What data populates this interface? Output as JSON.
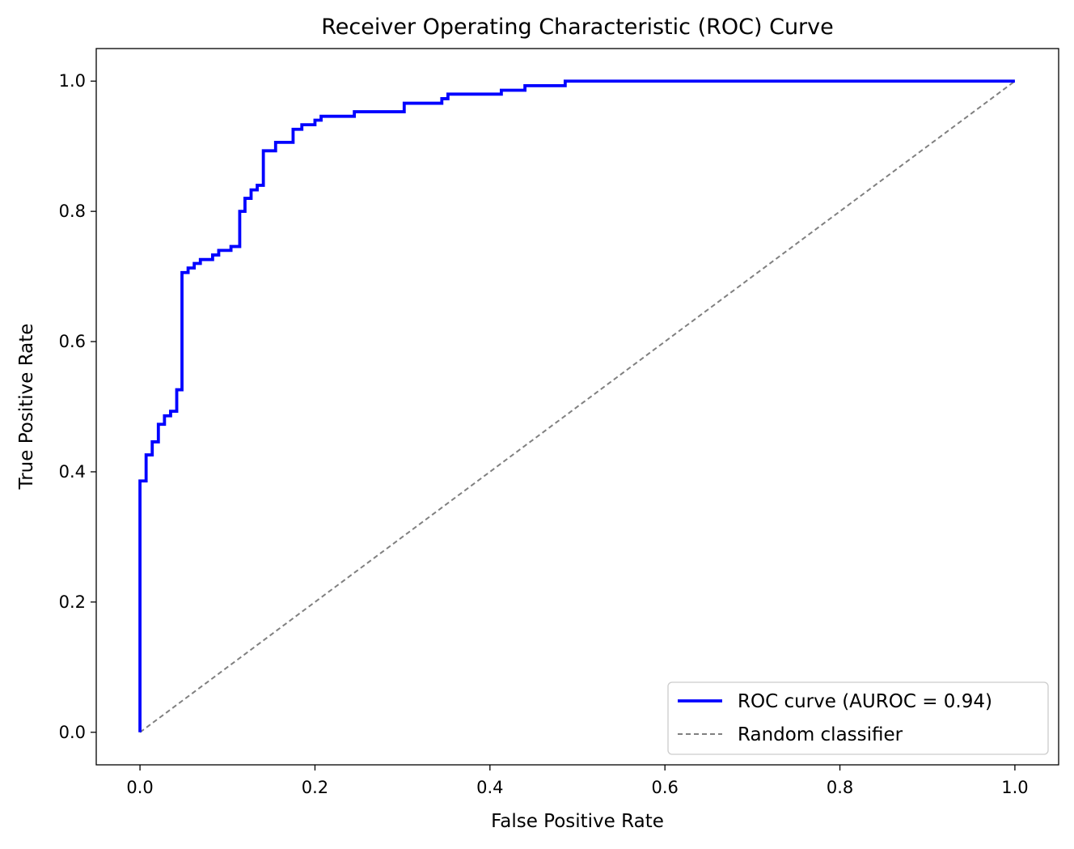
{
  "chart_data": {
    "type": "line",
    "title": "Receiver Operating Characteristic (ROC) Curve",
    "xlabel": "False Positive Rate",
    "ylabel": "True Positive Rate",
    "xlim": [
      -0.05,
      1.05
    ],
    "ylim": [
      -0.05,
      1.05
    ],
    "xticks": [
      0.0,
      0.2,
      0.4,
      0.6,
      0.8,
      1.0
    ],
    "xtick_labels": [
      "0.0",
      "0.2",
      "0.4",
      "0.6",
      "0.8",
      "1.0"
    ],
    "yticks": [
      0.0,
      0.2,
      0.4,
      0.6,
      0.8,
      1.0
    ],
    "ytick_labels": [
      "0.0",
      "0.2",
      "0.4",
      "0.6",
      "0.8",
      "1.0"
    ],
    "grid": false,
    "legend_position": "lower-right",
    "series": [
      {
        "name": "ROC curve (AUROC = 0.94)",
        "color": "#0000ff",
        "style": "solid-step",
        "x": [
          0.0,
          0.0,
          0.007,
          0.007,
          0.014,
          0.014,
          0.021,
          0.021,
          0.028,
          0.028,
          0.035,
          0.035,
          0.042,
          0.042,
          0.048,
          0.048,
          0.055,
          0.055,
          0.062,
          0.062,
          0.069,
          0.069,
          0.083,
          0.083,
          0.09,
          0.09,
          0.104,
          0.104,
          0.114,
          0.114,
          0.12,
          0.12,
          0.127,
          0.127,
          0.134,
          0.134,
          0.141,
          0.141,
          0.155,
          0.155,
          0.175,
          0.175,
          0.185,
          0.185,
          0.2,
          0.2,
          0.207,
          0.207,
          0.245,
          0.245,
          0.302,
          0.302,
          0.345,
          0.345,
          0.352,
          0.352,
          0.413,
          0.413,
          0.44,
          0.44,
          0.486,
          0.486,
          1.0
        ],
        "y": [
          0.0,
          0.386,
          0.386,
          0.426,
          0.426,
          0.446,
          0.446,
          0.473,
          0.473,
          0.486,
          0.486,
          0.493,
          0.493,
          0.526,
          0.526,
          0.706,
          0.706,
          0.713,
          0.713,
          0.72,
          0.72,
          0.726,
          0.726,
          0.733,
          0.733,
          0.74,
          0.74,
          0.746,
          0.746,
          0.8,
          0.8,
          0.82,
          0.82,
          0.833,
          0.833,
          0.84,
          0.84,
          0.893,
          0.893,
          0.906,
          0.906,
          0.926,
          0.926,
          0.933,
          0.933,
          0.94,
          0.94,
          0.946,
          0.946,
          0.953,
          0.953,
          0.966,
          0.966,
          0.973,
          0.973,
          0.98,
          0.98,
          0.986,
          0.986,
          0.993,
          0.993,
          1.0,
          1.0
        ]
      },
      {
        "name": "Random classifier",
        "color": "#808080",
        "style": "dashed",
        "x": [
          0.0,
          1.0
        ],
        "y": [
          0.0,
          1.0
        ]
      }
    ]
  }
}
